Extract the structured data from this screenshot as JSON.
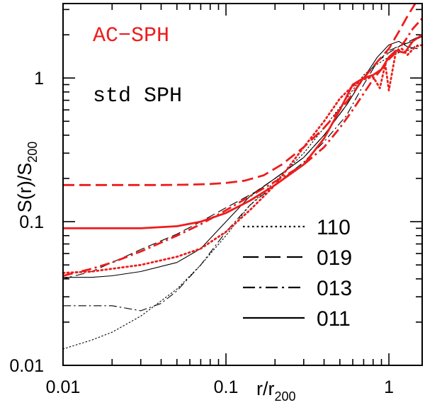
{
  "chart_data": {
    "type": "line",
    "scale": {
      "x": "log",
      "y": "log"
    },
    "xlim": [
      0.01,
      1.6
    ],
    "ylim": [
      0.01,
      3.3
    ],
    "xlabel": {
      "main": "r/r",
      "sub": "200"
    },
    "ylabel": {
      "main": "S(r)/S",
      "sub": "200"
    },
    "x_ticks": [
      {
        "value": 0.01,
        "label": "0.01"
      },
      {
        "value": 0.1,
        "label": "0.1"
      },
      {
        "value": 1,
        "label": "1"
      }
    ],
    "y_ticks": [
      {
        "value": 0.01,
        "label": "0.01"
      },
      {
        "value": 0.1,
        "label": "0.1"
      },
      {
        "value": 1,
        "label": "1"
      }
    ],
    "annotations": [
      {
        "text": "AC−SPH",
        "color": "#ee1c1c"
      },
      {
        "text": "std SPH",
        "color": "#000000"
      }
    ],
    "legend": [
      {
        "label": "110",
        "style": "dotted"
      },
      {
        "label": "019",
        "style": "dashed"
      },
      {
        "label": "013",
        "style": "dashdot"
      },
      {
        "label": "011",
        "style": "solid"
      }
    ],
    "colors": {
      "ac_sph": "#ee1c1c",
      "std_sph": "#000000"
    },
    "series": [
      {
        "group": "std SPH",
        "style": "dotted",
        "x": [
          0.01,
          0.015,
          0.02,
          0.03,
          0.05,
          0.07,
          0.1,
          0.14,
          0.2,
          0.3,
          0.4,
          0.55,
          0.7,
          0.85,
          1.0,
          1.15,
          1.3,
          1.5
        ],
        "y": [
          0.013,
          0.015,
          0.017,
          0.022,
          0.034,
          0.05,
          0.08,
          0.13,
          0.19,
          0.3,
          0.45,
          0.72,
          1.05,
          1.25,
          1.4,
          1.5,
          1.55,
          1.7
        ]
      },
      {
        "group": "std SPH",
        "style": "dashed",
        "x": [
          0.01,
          0.015,
          0.02,
          0.03,
          0.05,
          0.07,
          0.1,
          0.15,
          0.2,
          0.3,
          0.4,
          0.55,
          0.7,
          0.85,
          1.0,
          1.2,
          1.4,
          1.6
        ],
        "y": [
          0.04,
          0.045,
          0.052,
          0.064,
          0.082,
          0.1,
          0.125,
          0.16,
          0.2,
          0.28,
          0.4,
          0.65,
          1.0,
          1.3,
          1.5,
          1.7,
          1.85,
          2.0
        ]
      },
      {
        "group": "std SPH",
        "style": "dashdot",
        "x": [
          0.01,
          0.015,
          0.02,
          0.03,
          0.04,
          0.05,
          0.07,
          0.1,
          0.14,
          0.2,
          0.3,
          0.4,
          0.55,
          0.7,
          0.85,
          1.0,
          1.2,
          1.4,
          1.6
        ],
        "y": [
          0.026,
          0.026,
          0.026,
          0.024,
          0.027,
          0.033,
          0.05,
          0.085,
          0.13,
          0.18,
          0.26,
          0.36,
          0.55,
          0.9,
          1.3,
          1.55,
          1.7,
          1.8,
          1.95
        ]
      },
      {
        "group": "std SPH",
        "style": "solid",
        "x": [
          0.01,
          0.015,
          0.02,
          0.03,
          0.05,
          0.07,
          0.1,
          0.14,
          0.2,
          0.3,
          0.4,
          0.55,
          0.7,
          0.85,
          1.0,
          1.15,
          1.3,
          1.5
        ],
        "y": [
          0.041,
          0.041,
          0.042,
          0.045,
          0.052,
          0.065,
          0.1,
          0.15,
          0.2,
          0.28,
          0.4,
          0.65,
          1.0,
          1.4,
          1.7,
          1.8,
          1.65,
          1.6
        ]
      },
      {
        "group": "AC-SPH",
        "style": "dotted",
        "x": [
          0.01,
          0.015,
          0.02,
          0.03,
          0.05,
          0.07,
          0.1,
          0.14,
          0.2,
          0.3,
          0.4,
          0.5,
          0.6,
          0.7,
          0.8,
          0.88,
          0.95,
          1.0,
          1.1,
          1.2,
          1.3,
          1.45,
          1.6
        ],
        "y": [
          0.044,
          0.045,
          0.047,
          0.05,
          0.057,
          0.065,
          0.085,
          0.12,
          0.18,
          0.33,
          0.5,
          0.72,
          0.88,
          0.98,
          1.02,
          0.85,
          1.25,
          0.82,
          1.5,
          1.6,
          1.45,
          1.65,
          1.7
        ]
      },
      {
        "group": "AC-SPH",
        "style": "dashed",
        "x": [
          0.01,
          0.02,
          0.04,
          0.06,
          0.08,
          0.1,
          0.13,
          0.17,
          0.22,
          0.3,
          0.4,
          0.55,
          0.7,
          0.85,
          1.0,
          1.15,
          1.3,
          1.45
        ],
        "y": [
          0.18,
          0.18,
          0.18,
          0.181,
          0.183,
          0.186,
          0.193,
          0.21,
          0.25,
          0.33,
          0.45,
          0.68,
          1.0,
          1.3,
          1.6,
          2.1,
          2.7,
          3.3
        ]
      },
      {
        "group": "AC-SPH",
        "style": "dashdot",
        "x": [
          0.01,
          0.015,
          0.02,
          0.03,
          0.05,
          0.07,
          0.1,
          0.14,
          0.2,
          0.3,
          0.4,
          0.5,
          0.6,
          0.7,
          0.8,
          0.9,
          1.0,
          1.1,
          1.25,
          1.4,
          1.6
        ],
        "y": [
          0.042,
          0.047,
          0.052,
          0.062,
          0.08,
          0.096,
          0.12,
          0.15,
          0.19,
          0.25,
          0.33,
          0.45,
          0.6,
          0.78,
          0.98,
          1.15,
          1.35,
          1.5,
          1.8,
          2.2,
          2.6
        ]
      },
      {
        "group": "AC-SPH",
        "style": "solid",
        "x": [
          0.01,
          0.02,
          0.03,
          0.05,
          0.07,
          0.1,
          0.14,
          0.2,
          0.3,
          0.4,
          0.5,
          0.6,
          0.7,
          0.8,
          0.9,
          1.0,
          1.1,
          1.25,
          1.4,
          1.6
        ],
        "y": [
          0.09,
          0.09,
          0.09,
          0.093,
          0.1,
          0.115,
          0.14,
          0.18,
          0.25,
          0.38,
          0.6,
          0.9,
          1.0,
          1.05,
          1.15,
          1.4,
          1.55,
          1.5,
          1.8,
          2.0
        ]
      }
    ]
  }
}
